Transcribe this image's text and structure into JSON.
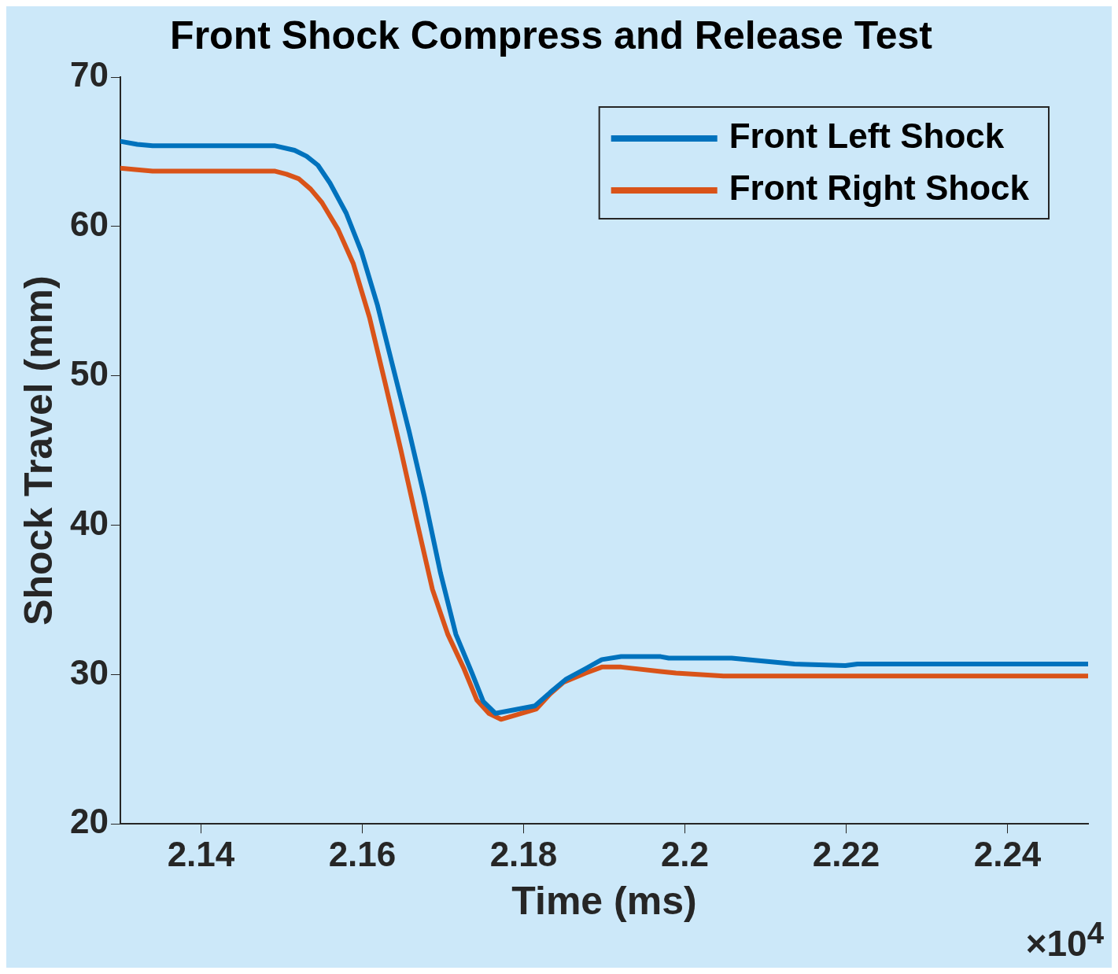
{
  "chart_data": {
    "type": "line",
    "title": "Front Shock Compress and Release Test",
    "xlabel": "Time (ms)",
    "ylabel": "Shock Travel (mm)",
    "xlim": [
      2.13,
      2.25
    ],
    "xticks": [
      2.14,
      2.16,
      2.18,
      2.2,
      2.22,
      2.24
    ],
    "ylim": [
      20,
      70
    ],
    "yticks": [
      20,
      30,
      40,
      50,
      60,
      70
    ],
    "grid": false,
    "legend": "top right",
    "marker": "none",
    "line_style": "solid",
    "annotations": [
      "×10$^{4}$"
    ],
    "series": [
      {
        "name": "Front Left Shock",
        "color": "#0072bd",
        "x": [
          2.13,
          2.1321,
          2.134,
          2.1492,
          2.1516,
          2.1531,
          2.1545,
          2.156,
          2.158,
          2.1599,
          2.1619,
          2.1638,
          2.1658,
          2.1677,
          2.1697,
          2.1716,
          2.1736,
          2.175,
          2.1765,
          2.1814,
          2.1833,
          2.1853,
          2.1877,
          2.1897,
          2.1921,
          2.197,
          2.198,
          2.2058,
          2.2136,
          2.2199,
          2.2214,
          2.25
        ],
        "values": [
          65.7,
          65.5,
          65.4,
          65.4,
          65.1,
          64.7,
          64.1,
          62.9,
          60.9,
          58.3,
          54.7,
          50.6,
          46.3,
          41.9,
          36.8,
          32.7,
          30.1,
          28.2,
          27.4,
          27.9,
          28.8,
          29.7,
          30.4,
          31.0,
          31.2,
          31.2,
          31.1,
          31.1,
          30.7,
          30.6,
          30.7,
          30.7
        ]
      },
      {
        "name": "Front Right Shock",
        "color": "#d95319",
        "x": [
          2.13,
          2.1321,
          2.134,
          2.1492,
          2.1506,
          2.1521,
          2.1536,
          2.155,
          2.157,
          2.1589,
          2.1609,
          2.1628,
          2.1648,
          2.1667,
          2.1687,
          2.1706,
          2.1726,
          2.1742,
          2.1757,
          2.1772,
          2.1816,
          2.1833,
          2.185,
          2.1877,
          2.1897,
          2.1921,
          2.197,
          2.1989,
          2.2048,
          2.25
        ],
        "values": [
          63.9,
          63.8,
          63.7,
          63.7,
          63.5,
          63.2,
          62.5,
          61.6,
          59.8,
          57.5,
          53.9,
          49.6,
          45.0,
          40.4,
          35.7,
          32.7,
          30.4,
          28.3,
          27.4,
          27.0,
          27.7,
          28.7,
          29.5,
          30.1,
          30.5,
          30.5,
          30.2,
          30.1,
          29.9,
          29.9
        ]
      }
    ]
  }
}
